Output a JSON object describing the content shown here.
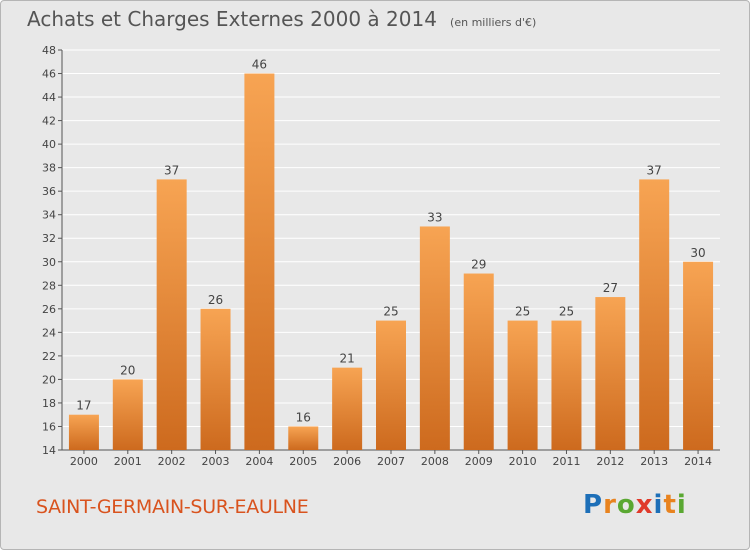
{
  "header": {
    "title": "Achats et Charges Externes 2000 à 2014",
    "unit": "(en milliers d'€)"
  },
  "footer": {
    "commune": "SAINT-GERMAIN-SUR-EAULNE",
    "brand": "Proxiti"
  },
  "colors": {
    "bar_light": "#f7a453",
    "bar_dark": "#cd6a1e",
    "brand_letters": [
      "#1d6fb8",
      "#e8831f",
      "#5aa832",
      "#e03a2a",
      "#1d6fb8",
      "#e8831f",
      "#5aa832"
    ]
  },
  "chart_data": {
    "type": "bar",
    "title": "Achats et Charges Externes 2000 à 2014",
    "categories": [
      "2000",
      "2001",
      "2002",
      "2003",
      "2004",
      "2005",
      "2006",
      "2007",
      "2008",
      "2009",
      "2010",
      "2011",
      "2012",
      "2013",
      "2014"
    ],
    "values": [
      17,
      20,
      37,
      26,
      46,
      16,
      21,
      25,
      33,
      29,
      25,
      25,
      27,
      37,
      30
    ],
    "ylim": [
      14,
      48
    ],
    "yticks": [
      14,
      16,
      18,
      20,
      22,
      24,
      26,
      28,
      30,
      32,
      34,
      36,
      38,
      40,
      42,
      44,
      46,
      48
    ],
    "grid": true,
    "legend": "none"
  }
}
